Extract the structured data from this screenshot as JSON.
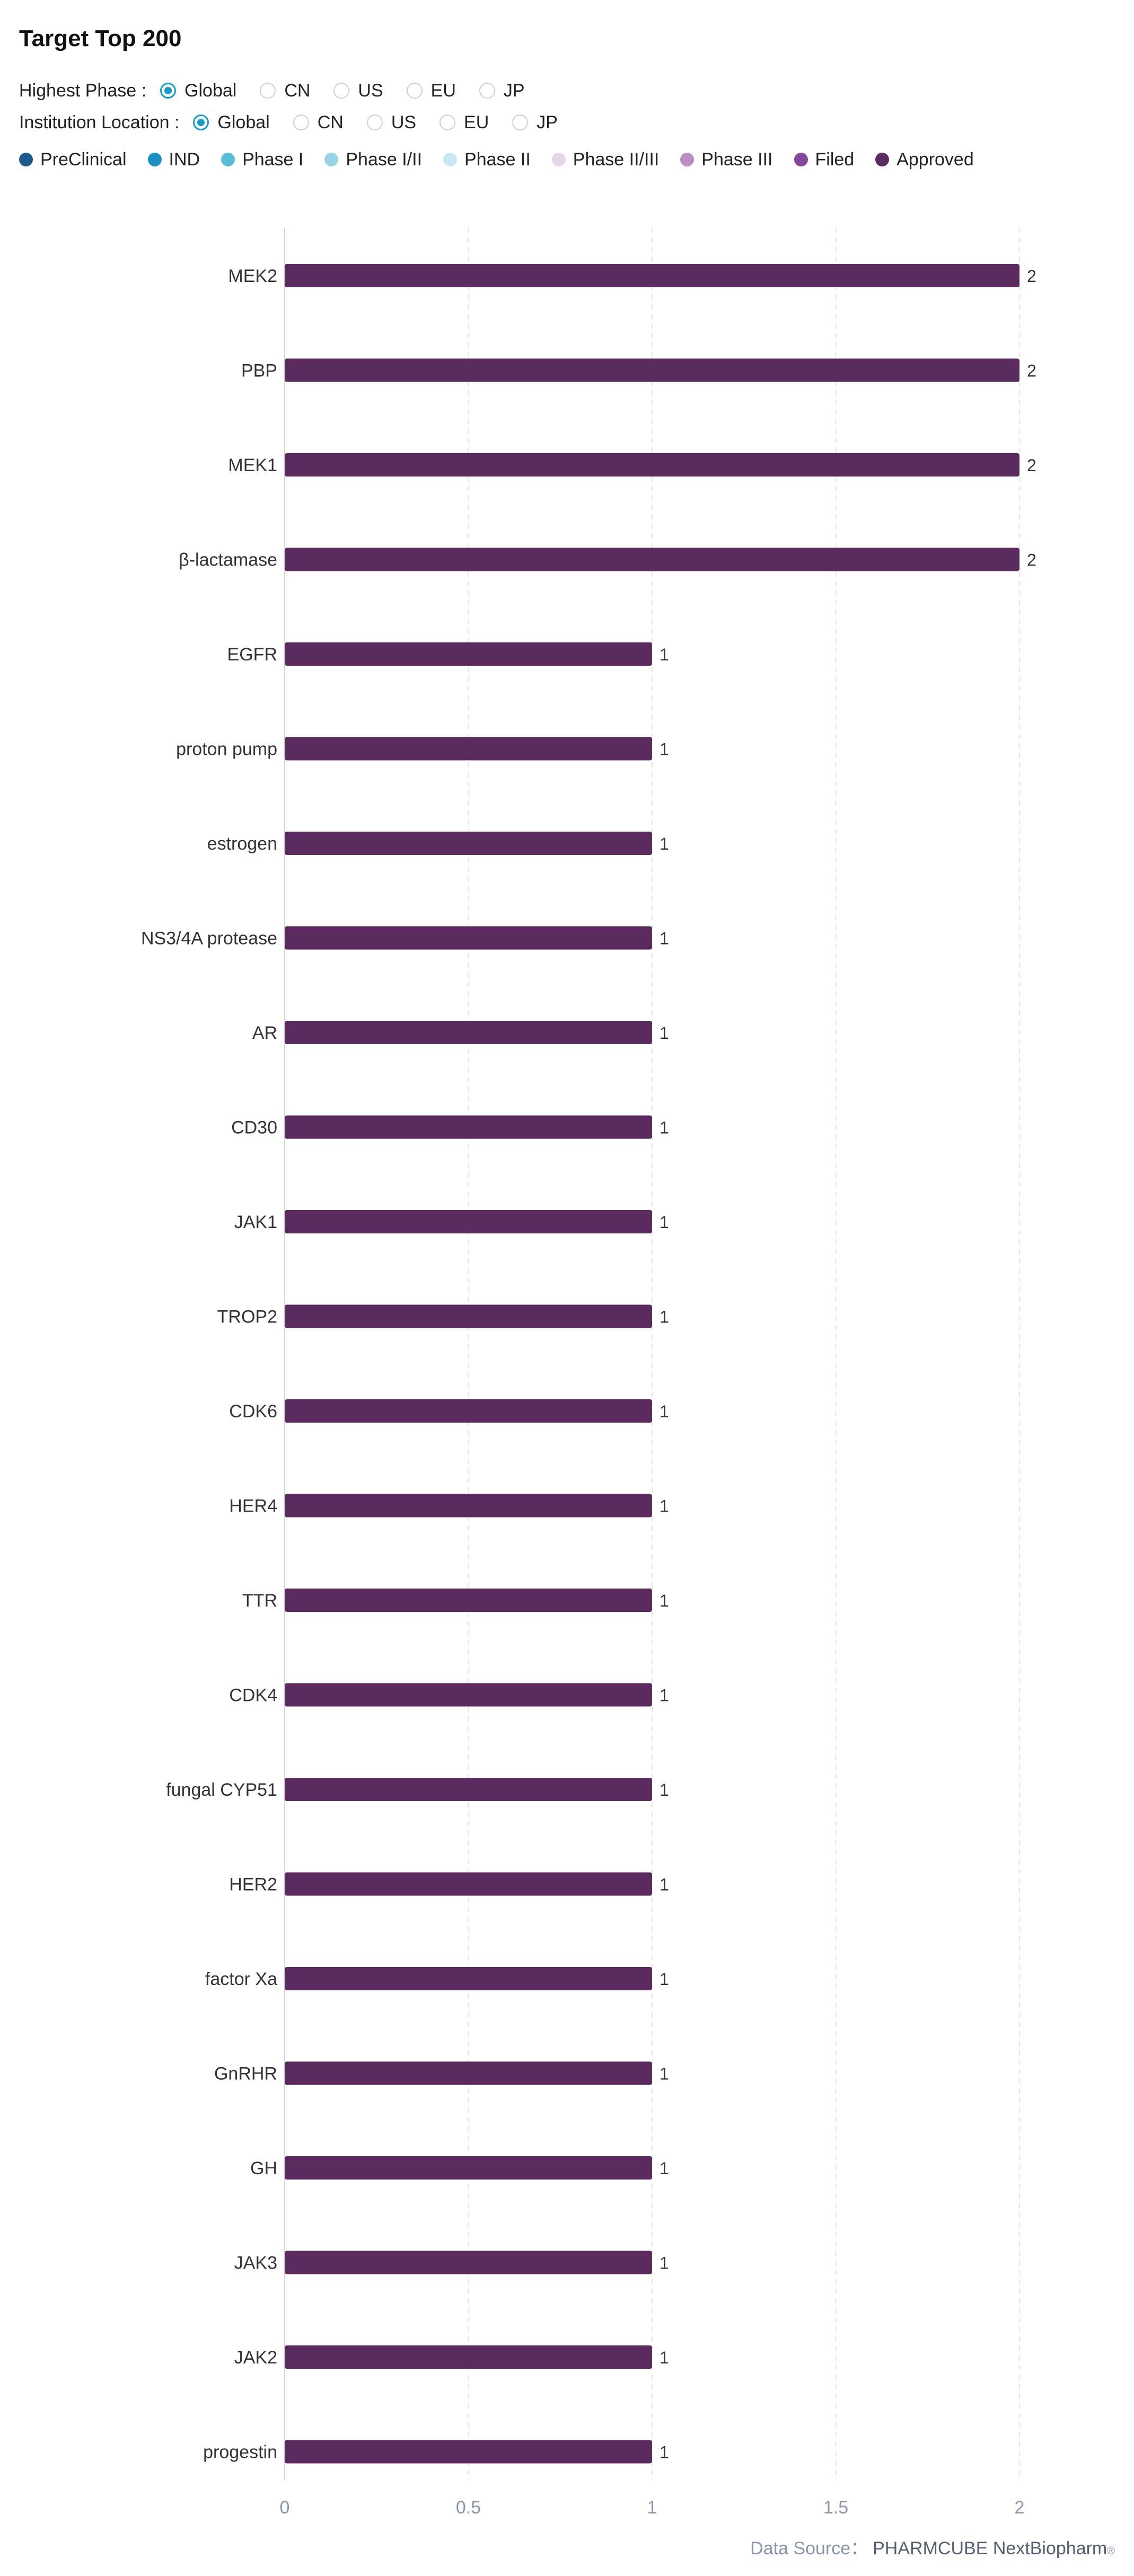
{
  "page": {
    "title": "Target Top 200"
  },
  "filters": {
    "highest_phase": {
      "label": "Highest Phase :",
      "options": [
        "Global",
        "CN",
        "US",
        "EU",
        "JP"
      ],
      "selected": "Global"
    },
    "institution_location": {
      "label": "Institution Location :",
      "options": [
        "Global",
        "CN",
        "US",
        "EU",
        "JP"
      ],
      "selected": "Global"
    }
  },
  "legend": [
    {
      "label": "PreClinical",
      "color": "#1b5a8a"
    },
    {
      "label": "IND",
      "color": "#1b8fbf"
    },
    {
      "label": "Phase I",
      "color": "#5bbcd8"
    },
    {
      "label": "Phase I/II",
      "color": "#9ad3e6"
    },
    {
      "label": "Phase II",
      "color": "#c9e8f2"
    },
    {
      "label": "Phase II/III",
      "color": "#e3d6e8"
    },
    {
      "label": "Phase III",
      "color": "#b88ec4"
    },
    {
      "label": "Filed",
      "color": "#86479a"
    },
    {
      "label": "Approved",
      "color": "#5b2a5e"
    }
  ],
  "chart_data": {
    "type": "bar",
    "orientation": "horizontal",
    "categories": [
      "MEK2",
      "PBP",
      "MEK1",
      "β-lactamase",
      "EGFR",
      "proton pump",
      "estrogen",
      "NS3/4A protease",
      "AR",
      "CD30",
      "JAK1",
      "TROP2",
      "CDK6",
      "HER4",
      "TTR",
      "CDK4",
      "fungal CYP51",
      "HER2",
      "factor Xa",
      "GnRHR",
      "GH",
      "JAK3",
      "JAK2",
      "progestin"
    ],
    "series": [
      {
        "name": "Approved",
        "color": "#5b2a5e",
        "values": [
          2,
          2,
          2,
          2,
          1,
          1,
          1,
          1,
          1,
          1,
          1,
          1,
          1,
          1,
          1,
          1,
          1,
          1,
          1,
          1,
          1,
          1,
          1,
          1
        ]
      }
    ],
    "x_ticks": [
      0,
      0.5,
      1,
      1.5,
      2
    ],
    "x_tick_labels": [
      "0",
      "0.5",
      "1",
      "1.5",
      "2"
    ],
    "xlim": [
      0,
      2
    ],
    "grid": "vertical dashed",
    "data_labels": true
  },
  "footer": {
    "prefix": "Data Source：",
    "source": "PHARMCUBE NextBiopharm",
    "mark": "®"
  }
}
